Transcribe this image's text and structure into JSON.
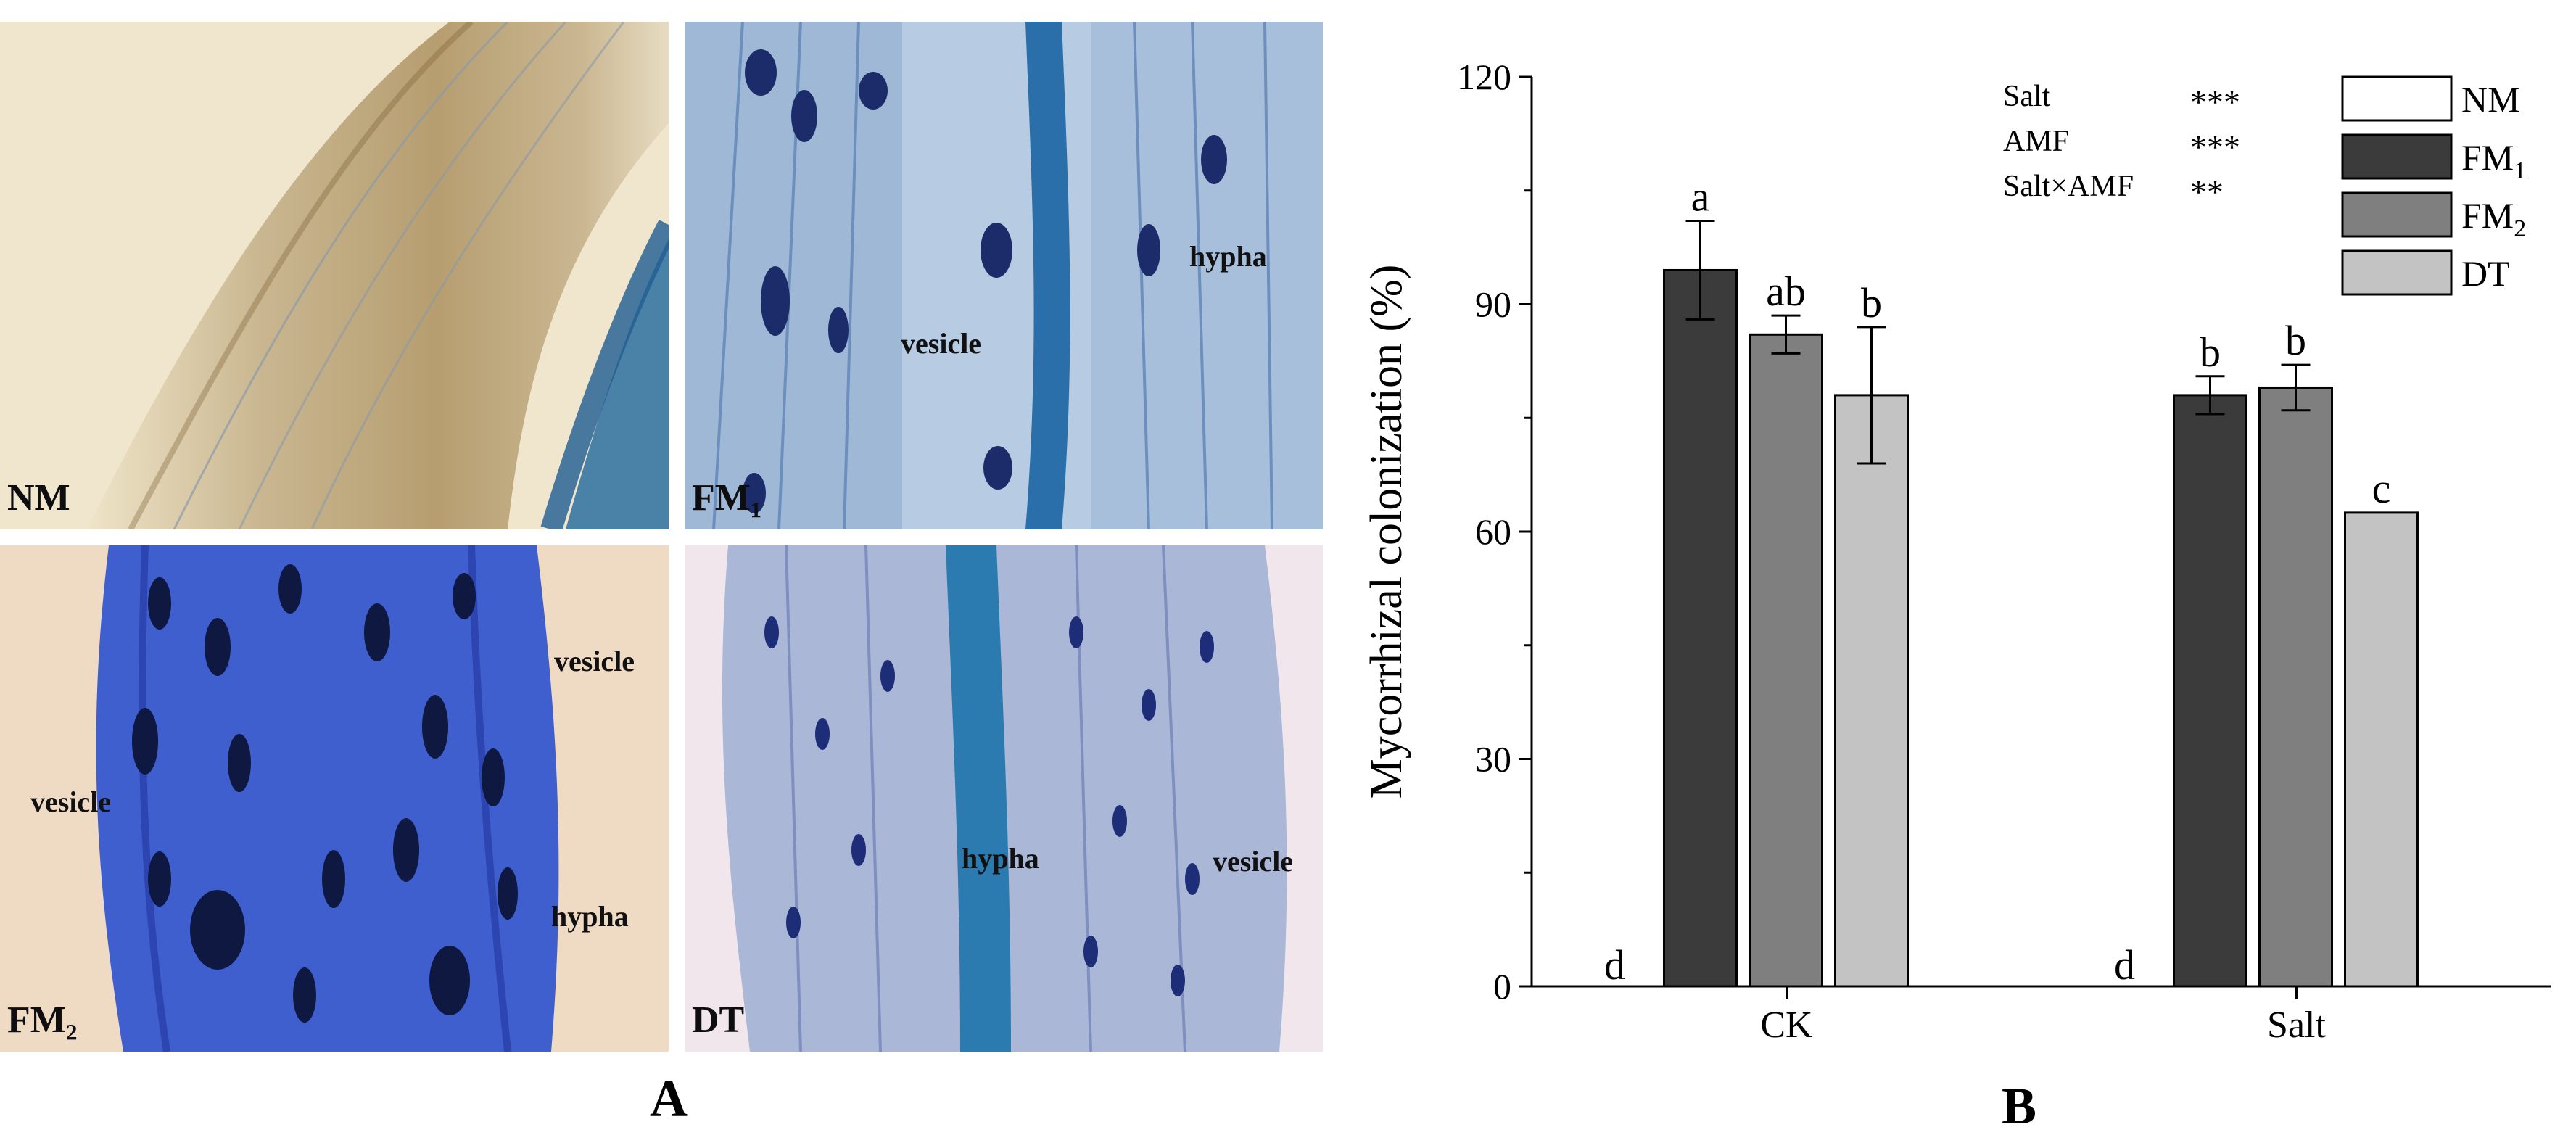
{
  "panel_a": {
    "letter": "A",
    "images": [
      {
        "label": "NM",
        "annotations": []
      },
      {
        "label": "FM₁",
        "annotations": [
          "hypha",
          "vesicle"
        ]
      },
      {
        "label": "FM₂",
        "annotations": [
          "vesicle",
          "vesicle",
          "hypha"
        ]
      },
      {
        "label": "DT",
        "annotations": [
          "hypha",
          "vesicle"
        ]
      }
    ]
  },
  "panel_b": {
    "letter": "B"
  },
  "chart_data": {
    "type": "bar",
    "title": "",
    "xlabel": "",
    "ylabel": "Mycorrhizal colonization (%)",
    "ylim": [
      0,
      120
    ],
    "yticks": [
      "0",
      "30",
      "60",
      "90",
      "120"
    ],
    "categories": [
      "CK",
      "Salt"
    ],
    "grid": false,
    "legend_position": "top-right",
    "series": [
      {
        "name": "NM",
        "color": "#ffffff",
        "values": [
          0,
          0
        ],
        "errors": [
          0,
          0
        ],
        "letters": [
          "d",
          "d"
        ]
      },
      {
        "name": "FM1",
        "name_base": "FM",
        "name_sub": "1",
        "color": "#3b3b3b",
        "values": [
          94.5,
          78
        ],
        "errors": [
          6.5,
          2.5
        ],
        "letters": [
          "a",
          "b"
        ]
      },
      {
        "name": "FM2",
        "name_base": "FM",
        "name_sub": "2",
        "color": "#7f7f7f",
        "values": [
          86,
          79
        ],
        "errors": [
          2.5,
          3
        ],
        "letters": [
          "ab",
          "b"
        ]
      },
      {
        "name": "DT",
        "color": "#c3c3c3",
        "values": [
          78,
          62.5
        ],
        "errors": [
          9,
          0
        ],
        "letters": [
          "b",
          "c"
        ]
      }
    ],
    "stats": [
      {
        "factor": "Salt",
        "sig": "***"
      },
      {
        "factor": "AMF",
        "sig": "***"
      },
      {
        "factor": "Salt×AMF",
        "sig": "**"
      }
    ]
  }
}
